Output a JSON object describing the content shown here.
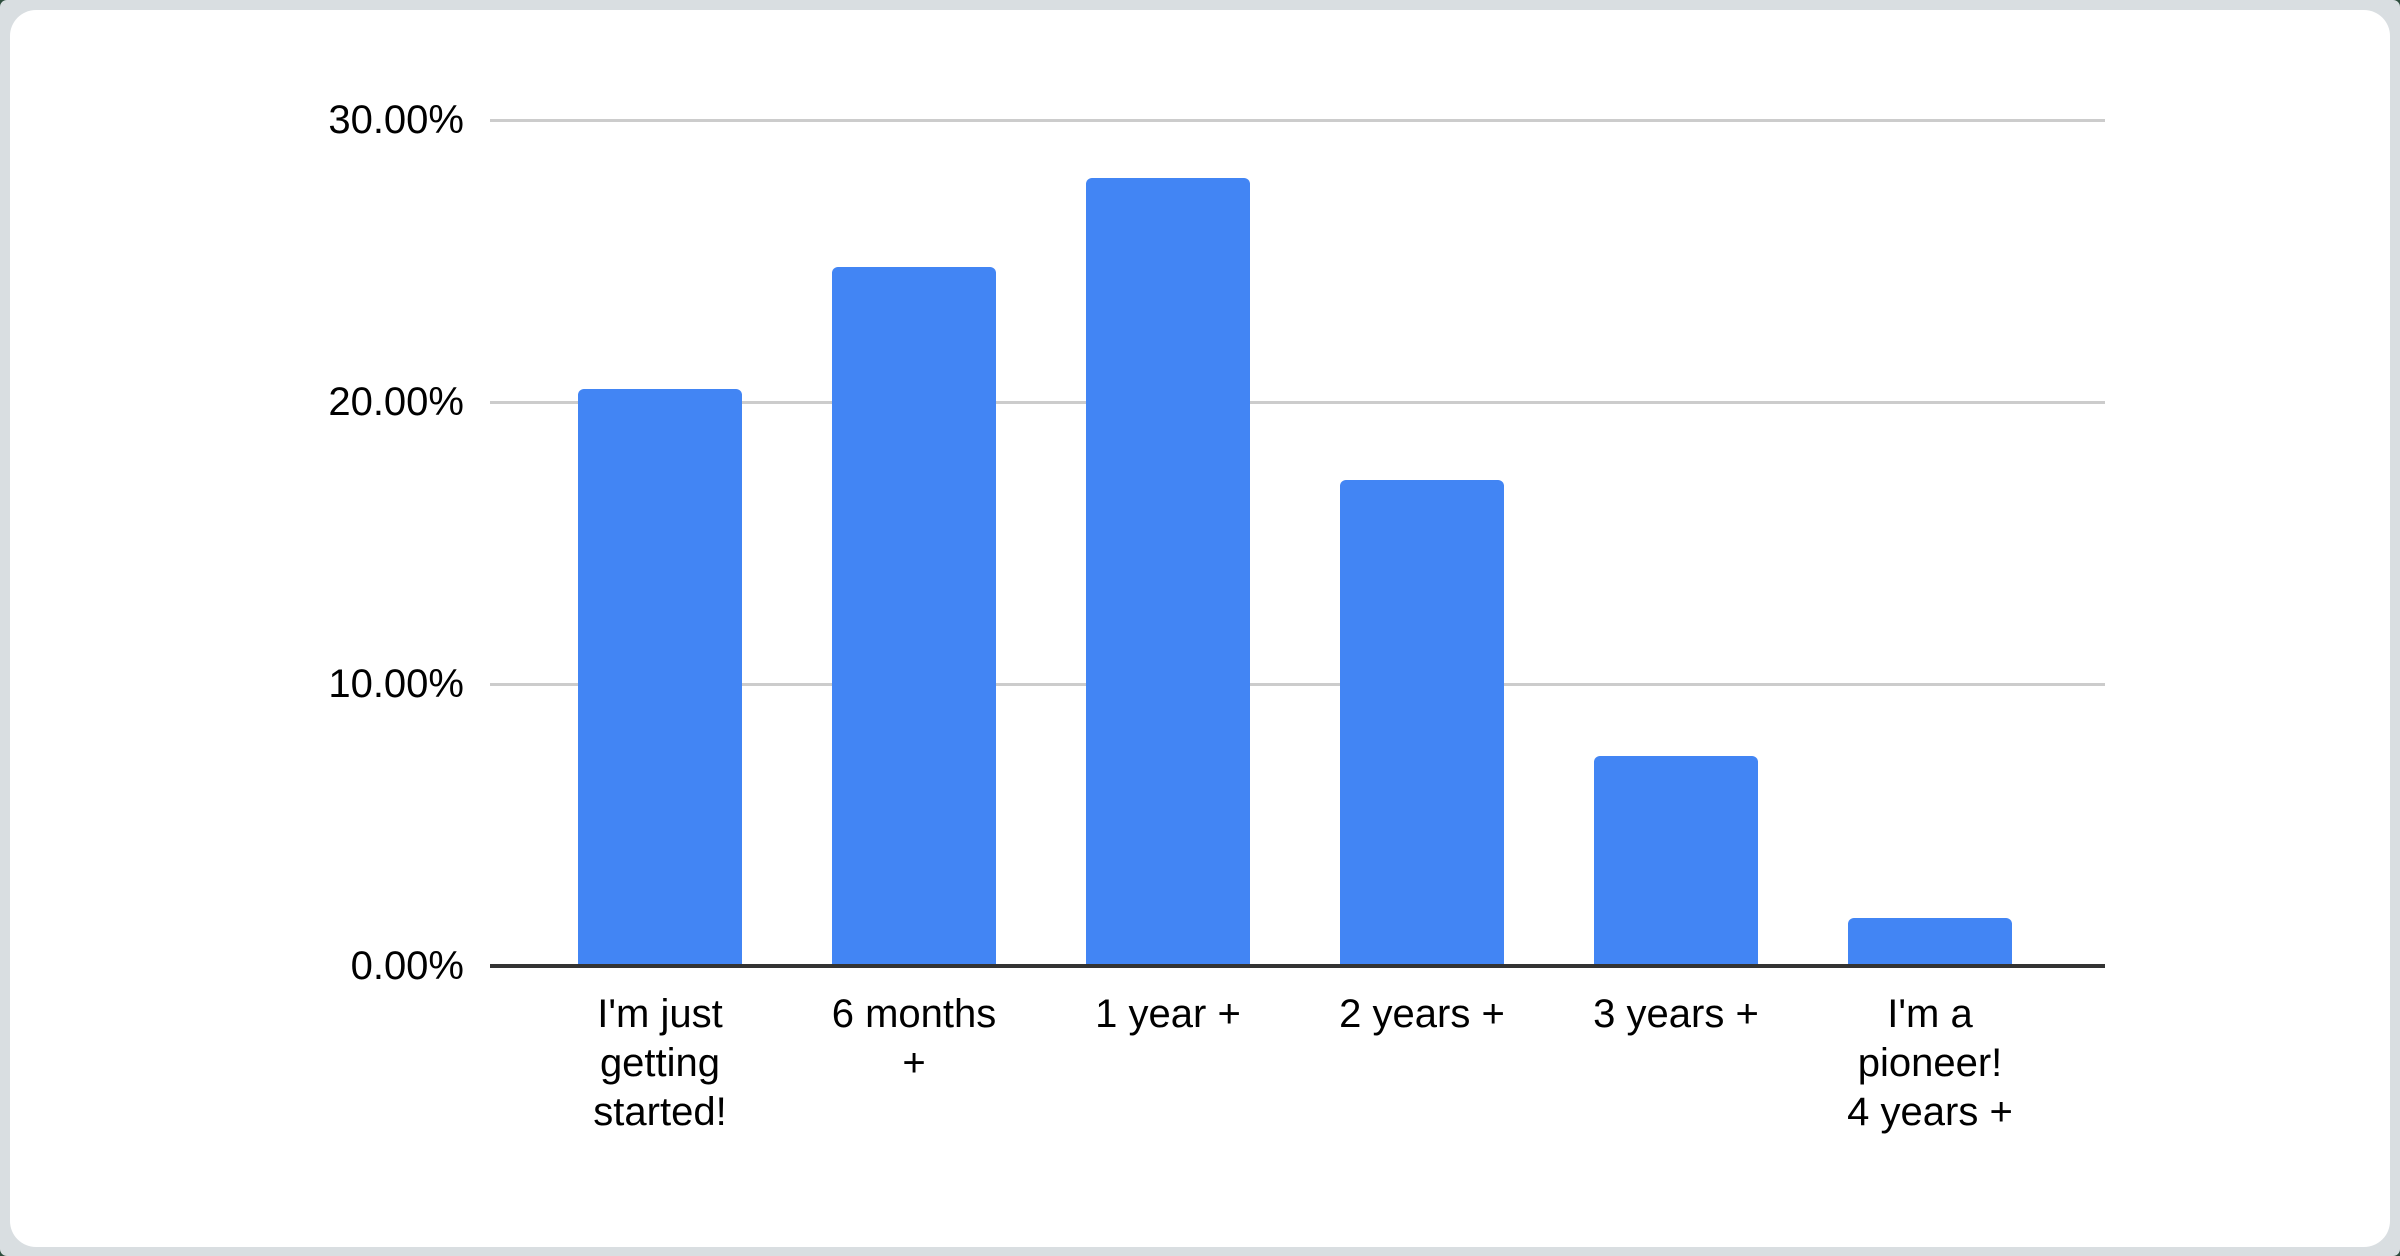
{
  "page": {
    "outer_background_color": "#2f4e3e",
    "frame_background_color": "#d9dee1",
    "card_background_color": "#ffffff"
  },
  "chart_data": {
    "type": "bar",
    "title": "",
    "xlabel": "",
    "ylabel": "",
    "categories": [
      "I'm just\ngetting\nstarted!",
      "6 months\n+",
      "1 year +",
      "2 years +",
      "3 years +",
      "I'm a\npioneer!\n4 years +"
    ],
    "values": [
      20.45,
      24.8,
      27.95,
      17.25,
      7.45,
      1.7
    ],
    "value_unit": "%",
    "ylim": [
      0,
      30
    ],
    "y_ticks": [
      {
        "value": 30,
        "label": "30.00%"
      },
      {
        "value": 20,
        "label": "20.00%"
      },
      {
        "value": 10,
        "label": "10.00%"
      },
      {
        "value": 0,
        "label": "0.00%"
      }
    ],
    "grid": true,
    "legend_position": "none",
    "colors": {
      "bar": "#4285f4",
      "gridline": "#cccccc",
      "axis_line": "#333333",
      "label_text": "#000000"
    }
  }
}
